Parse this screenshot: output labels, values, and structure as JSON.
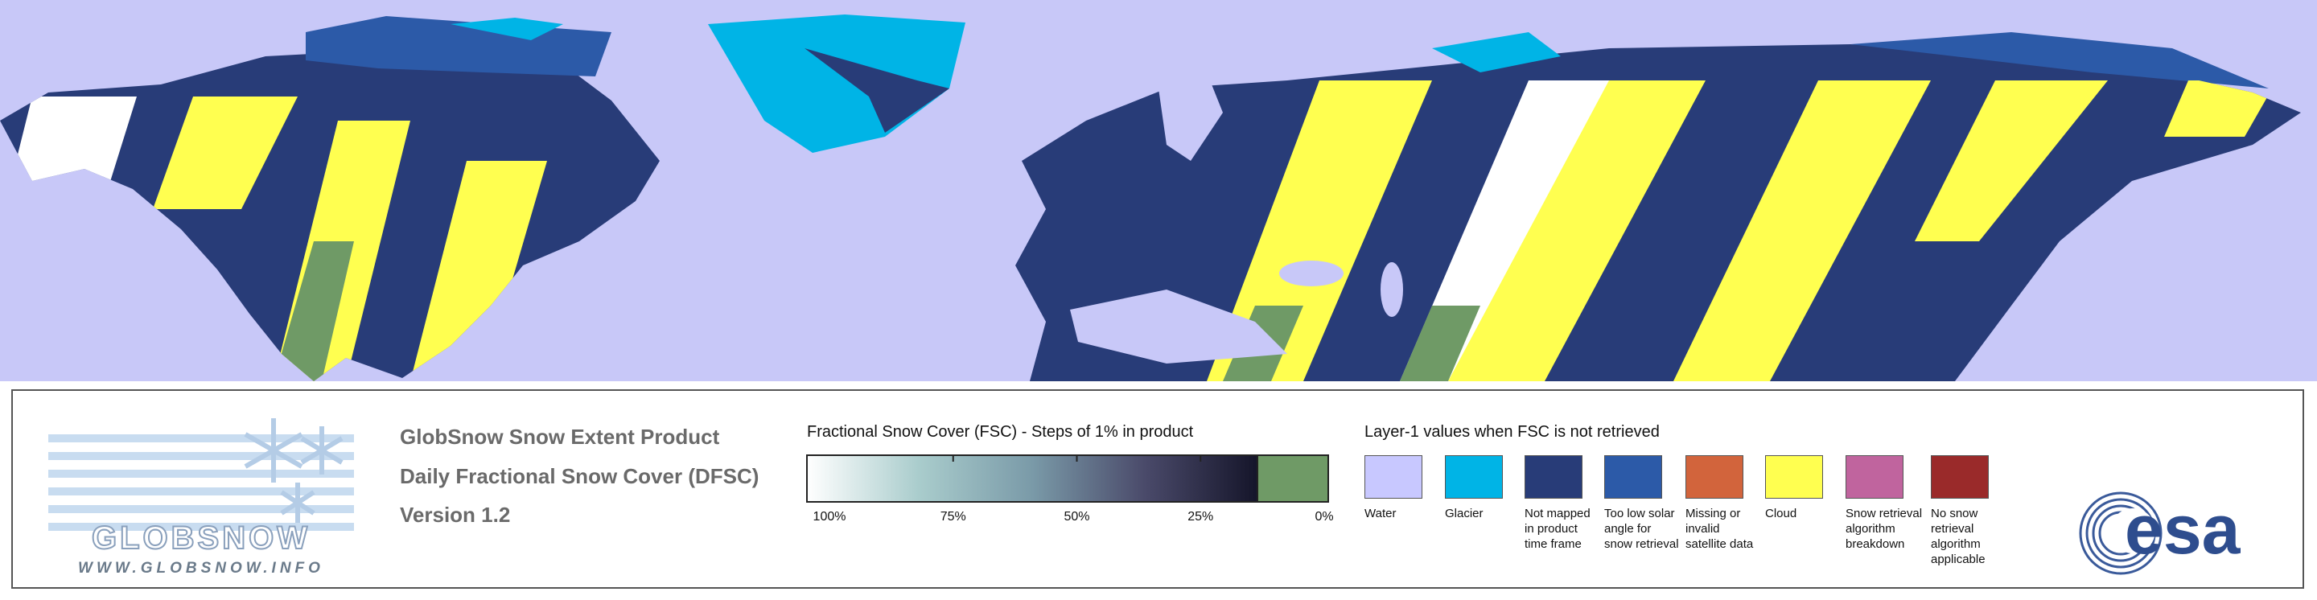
{
  "header": {
    "logo_text": "GLOBSNOW",
    "website": "WWW.GLOBSNOW.INFO",
    "title": "GlobSnow Snow Extent Product",
    "subtitle": "Daily Fractional Snow Cover (DFSC)",
    "version": "Version 1.2"
  },
  "colorbar": {
    "title": "Fractional Snow Cover (FSC) - Steps of 1% in product",
    "ticks": [
      {
        "value": 100,
        "label": "100%"
      },
      {
        "value": 75,
        "label": "75%"
      },
      {
        "value": 50,
        "label": "50%"
      },
      {
        "value": 25,
        "label": "25%"
      },
      {
        "value": 0,
        "label": "0%"
      }
    ]
  },
  "layer1": {
    "title": "Layer-1 values when FSC is not retrieved",
    "items": [
      {
        "label": "Water",
        "color": "#c8c8ff"
      },
      {
        "label": "Glacier",
        "color": "#00b4e6"
      },
      {
        "label": "Not mapped in product time frame",
        "color": "#283c78"
      },
      {
        "label": "Too low solar angle for snow retrieval",
        "color": "#2c5aa8"
      },
      {
        "label": "Missing or invalid satellite data",
        "color": "#d2643c"
      },
      {
        "label": "Cloud",
        "color": "#ffff50"
      },
      {
        "label": "Snow retrieval algorithm breakdown",
        "color": "#c0649e"
      },
      {
        "label": "No snow retrieval algorithm applicable",
        "color": "#9a2a2a"
      }
    ]
  },
  "agency": "esa"
}
